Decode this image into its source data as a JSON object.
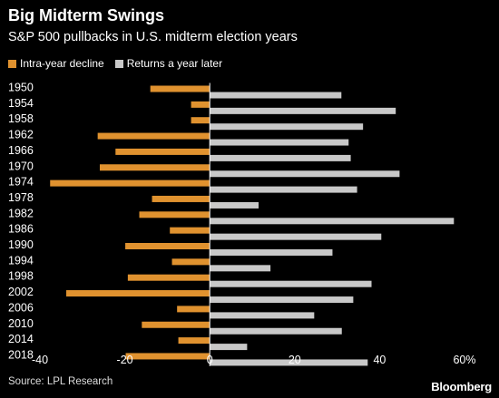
{
  "chart_data": {
    "type": "bar",
    "orientation": "horizontal",
    "title": "Big Midterm Swings",
    "subtitle": "S&P 500 pullbacks in U.S. midterm election years",
    "categories": [
      "1950",
      "1954",
      "1958",
      "1962",
      "1966",
      "1970",
      "1974",
      "1978",
      "1982",
      "1986",
      "1990",
      "1994",
      "1998",
      "2002",
      "2006",
      "2010",
      "2014",
      "2018"
    ],
    "series": [
      {
        "name": "Intra-year decline",
        "color": "#e0922f",
        "values": [
          -14,
          -4.4,
          -4.4,
          -26.4,
          -22.2,
          -25.9,
          -37.6,
          -13.6,
          -16.6,
          -9.4,
          -19.9,
          -8.9,
          -19.3,
          -33.8,
          -7.7,
          -16,
          -7.4,
          -19.8
        ]
      },
      {
        "name": "Returns a year later",
        "color": "#c8c8c8",
        "values": [
          31,
          43.8,
          36.1,
          32.7,
          33.2,
          44.7,
          34.7,
          11.5,
          57.5,
          40.4,
          28.9,
          14.3,
          38.1,
          33.8,
          24.6,
          31.1,
          8.8,
          37.2
        ]
      }
    ],
    "xlim": [
      -40,
      60
    ],
    "xticks": [
      "-40",
      "-20",
      "0",
      "20",
      "40",
      "60%"
    ],
    "grid": false,
    "legend": "top-left"
  },
  "source": "Source: LPL Research",
  "brand": "Bloomberg"
}
